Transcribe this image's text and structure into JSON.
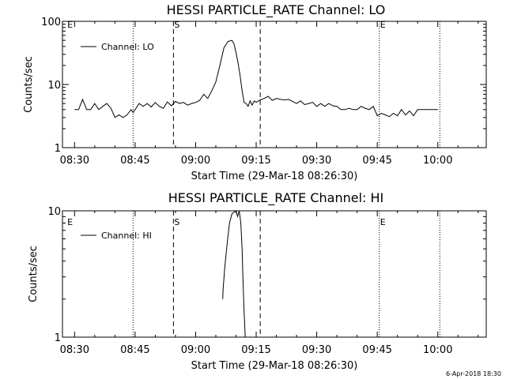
{
  "footer": "6-Apr-2018 18:30",
  "chart_data": [
    {
      "type": "line",
      "title": "HESSI PARTICLE_RATE Channel: LO",
      "xlabel": "Start Time (29-Mar-18 08:26:30)",
      "ylabel": "Counts/sec",
      "yscale": "log",
      "ylim": [
        1,
        100
      ],
      "y_ticks": [
        1,
        10,
        100
      ],
      "y_tick_labels": [
        "1",
        "10",
        "100"
      ],
      "xlim_minutes": [
        -3,
        102
      ],
      "x_ticks": [
        0,
        15,
        30,
        45,
        60,
        75,
        90
      ],
      "x_tick_labels": [
        "08:30",
        "08:45",
        "09:00",
        "09:15",
        "09:30",
        "09:45",
        "10:00"
      ],
      "legend": "top-left",
      "series": [
        {
          "name": "Channel: LO",
          "x": [
            0,
            1,
            2,
            3,
            4,
            5,
            6,
            7,
            8,
            9,
            10,
            11,
            12,
            13,
            14,
            14.5,
            15,
            16,
            17,
            18,
            19,
            20,
            21,
            22,
            23,
            24,
            25,
            26,
            27,
            28,
            29,
            30,
            31,
            32,
            33,
            34,
            35,
            36,
            37,
            38,
            39,
            39.5,
            40,
            40.5,
            41,
            41.5,
            42,
            42.5,
            43,
            43.5,
            44,
            44.5,
            45,
            46,
            47,
            48,
            49,
            50,
            51,
            52,
            53,
            54,
            55,
            56,
            57,
            58,
            59,
            60,
            61,
            62,
            63,
            64,
            65,
            66,
            67,
            68,
            69,
            70,
            71,
            72,
            73,
            74,
            75,
            76,
            77,
            78,
            79,
            80,
            81,
            82,
            83,
            84,
            85,
            86,
            87,
            88,
            89,
            90
          ],
          "y": [
            4,
            4,
            5.8,
            4,
            4,
            5,
            4,
            4.5,
            5,
            4.2,
            3,
            3.3,
            3,
            3.3,
            4,
            3.6,
            4,
            5,
            4.5,
            5,
            4.4,
            5.2,
            4.5,
            4.2,
            5.3,
            4.6,
            5.4,
            5,
            5.2,
            4.7,
            5,
            5.2,
            5.6,
            7,
            6,
            8,
            11,
            20,
            38,
            48,
            50,
            44,
            32,
            22,
            14,
            8,
            5.2,
            5,
            4.5,
            5.5,
            4.7,
            5.5,
            5.2,
            5.7,
            6,
            6.5,
            5.6,
            6,
            5.8,
            5.7,
            5.8,
            5.4,
            5,
            5.5,
            4.8,
            5,
            5.2,
            4.5,
            5,
            4.5,
            5,
            4.6,
            4.5,
            4,
            4,
            4.2,
            4,
            4,
            4.5,
            4.2,
            4,
            4.5,
            3.2,
            3.5,
            3.3,
            3.1,
            3.5,
            3.2,
            4,
            3.3,
            3.8,
            3.2,
            4,
            4,
            4,
            4,
            4,
            4
          ]
        }
      ],
      "markers": [
        {
          "label": "E",
          "x": -2,
          "style": "none"
        },
        {
          "label": "",
          "x": 14.5,
          "style": "dotted"
        },
        {
          "label": "S",
          "x": 24.5,
          "style": "dashed"
        },
        {
          "label": "",
          "x": 46,
          "style": "dashed"
        },
        {
          "label": "E",
          "x": 75.5,
          "style": "dotted"
        },
        {
          "label": "",
          "x": 90.5,
          "style": "dotted"
        }
      ]
    },
    {
      "type": "line",
      "title": "HESSI PARTICLE_RATE Channel: HI",
      "xlabel": "Start Time (29-Mar-18 08:26:30)",
      "ylabel": "Counts/sec",
      "yscale": "log",
      "ylim": [
        1,
        10
      ],
      "y_ticks": [
        1,
        10
      ],
      "y_tick_labels": [
        "1",
        "10"
      ],
      "xlim_minutes": [
        -3,
        102
      ],
      "x_ticks": [
        0,
        15,
        30,
        45,
        60,
        75,
        90
      ],
      "x_tick_labels": [
        "08:30",
        "08:45",
        "09:00",
        "09:15",
        "09:30",
        "09:45",
        "10:00"
      ],
      "legend": "top-left",
      "series": [
        {
          "name": "Channel: HI",
          "x": [
            36.7,
            36.8,
            37.2,
            37.8,
            38.4,
            39,
            39.6,
            40,
            40.4,
            40.8,
            41.2,
            41.5,
            41.7,
            42,
            42.3
          ],
          "y": [
            2,
            2.4,
            3.5,
            5.5,
            8,
            9.5,
            9.8,
            10,
            9,
            10,
            8,
            5,
            3,
            1.6,
            1
          ]
        }
      ],
      "markers": [
        {
          "label": "E",
          "x": -2,
          "style": "none"
        },
        {
          "label": "",
          "x": 14.5,
          "style": "dotted"
        },
        {
          "label": "S",
          "x": 24.5,
          "style": "dashed"
        },
        {
          "label": "",
          "x": 46,
          "style": "dashed"
        },
        {
          "label": "E",
          "x": 75.5,
          "style": "dotted"
        },
        {
          "label": "",
          "x": 90.5,
          "style": "dotted"
        }
      ]
    }
  ]
}
